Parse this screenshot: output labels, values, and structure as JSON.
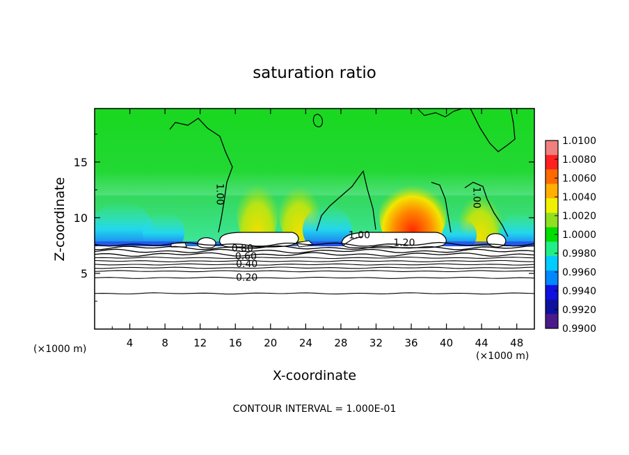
{
  "chart_data": {
    "type": "heatmap",
    "title": "saturation ratio",
    "xlabel": "X-coordinate",
    "ylabel": "Z-coordinate",
    "x_unit": "(×1000 m)",
    "x_unit_right": "(×1000 m)",
    "xlim": [
      0,
      50
    ],
    "ylim": [
      0,
      19.8
    ],
    "xticks": [
      4,
      8,
      12,
      16,
      20,
      24,
      28,
      32,
      36,
      40,
      44,
      48
    ],
    "yticks": [
      5,
      10,
      15
    ],
    "footer": "CONTOUR INTERVAL = 1.000E-01",
    "colorbar": {
      "labels": [
        "1.0100",
        "1.0080",
        "1.0060",
        "1.0040",
        "1.0020",
        "1.0000",
        "0.9980",
        "0.9960",
        "0.9940",
        "0.9920",
        "0.9900"
      ],
      "colors": [
        "#f08080",
        "#ff2020",
        "#ff6a00",
        "#ffb000",
        "#f0f000",
        "#90e020",
        "#00dd00",
        "#22ee88",
        "#00ccff",
        "#0088ff",
        "#1010e0",
        "#1010a0",
        "#4a1a8a"
      ]
    },
    "contour_labels": [
      {
        "text": "1.00",
        "x": 14.2,
        "y": 12.1
      },
      {
        "text": "1.00",
        "x": 43.4,
        "y": 11.8
      },
      {
        "text": "1.00",
        "x": 30.1,
        "y": 8.4
      },
      {
        "text": "1.20",
        "x": 35.2,
        "y": 7.7
      },
      {
        "text": "0.80",
        "x": 16.8,
        "y": 7.2
      },
      {
        "text": "0.60",
        "x": 17.2,
        "y": 6.5
      },
      {
        "text": "0.40",
        "x": 17.3,
        "y": 5.8
      },
      {
        "text": "0.20",
        "x": 17.3,
        "y": 4.6
      }
    ],
    "contour_levels_y": [
      7.6,
      7.3,
      7.0,
      6.7,
      6.4,
      6.1,
      5.8,
      5.5,
      5.2,
      4.6,
      3.2
    ]
  }
}
